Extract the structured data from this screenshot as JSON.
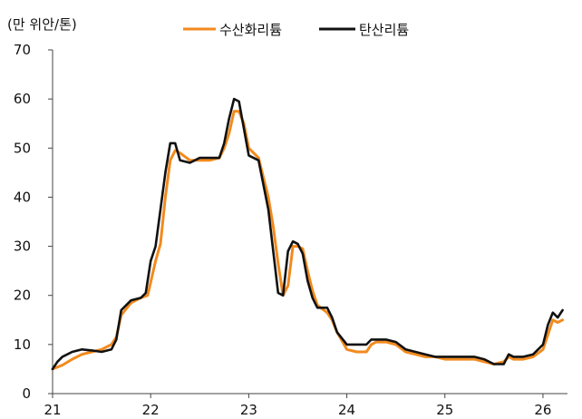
{
  "chart_data": {
    "type": "line",
    "unit_label": "(만 위안/톤)",
    "title": "",
    "xlabel": "",
    "ylabel": "",
    "xlim": [
      21,
      26.25
    ],
    "ylim": [
      0,
      70
    ],
    "y_ticks": [
      0,
      10,
      20,
      30,
      40,
      50,
      60,
      70
    ],
    "x_ticks": [
      21,
      22,
      23,
      24,
      25,
      26
    ],
    "x_tick_labels": [
      "21",
      "22",
      "23",
      "24",
      "25",
      "26"
    ],
    "legend_position": "top",
    "grid": false,
    "series": [
      {
        "name": "수산화리튬",
        "color": "#F28A1E",
        "points": [
          [
            21.0,
            5.0
          ],
          [
            21.1,
            5.8
          ],
          [
            21.2,
            7.0
          ],
          [
            21.3,
            8.0
          ],
          [
            21.4,
            8.5
          ],
          [
            21.5,
            9.0
          ],
          [
            21.6,
            10.0
          ],
          [
            21.65,
            11.5
          ],
          [
            21.7,
            16.0
          ],
          [
            21.8,
            18.5
          ],
          [
            21.9,
            19.5
          ],
          [
            21.97,
            20.0
          ],
          [
            22.05,
            27.0
          ],
          [
            22.1,
            30.5
          ],
          [
            22.15,
            40.0
          ],
          [
            22.2,
            47.5
          ],
          [
            22.25,
            49.5
          ],
          [
            22.3,
            49.0
          ],
          [
            22.4,
            47.5
          ],
          [
            22.5,
            47.5
          ],
          [
            22.6,
            47.5
          ],
          [
            22.7,
            48.0
          ],
          [
            22.75,
            50.0
          ],
          [
            22.8,
            53.0
          ],
          [
            22.85,
            57.5
          ],
          [
            22.9,
            57.5
          ],
          [
            22.95,
            55.0
          ],
          [
            23.0,
            50.0
          ],
          [
            23.05,
            49.0
          ],
          [
            23.1,
            48.0
          ],
          [
            23.2,
            40.0
          ],
          [
            23.25,
            34.0
          ],
          [
            23.3,
            26.5
          ],
          [
            23.35,
            20.0
          ],
          [
            23.4,
            22.0
          ],
          [
            23.45,
            30.0
          ],
          [
            23.5,
            30.0
          ],
          [
            23.55,
            29.5
          ],
          [
            23.6,
            25.0
          ],
          [
            23.65,
            21.0
          ],
          [
            23.7,
            18.0
          ],
          [
            23.8,
            16.5
          ],
          [
            23.85,
            15.0
          ],
          [
            23.9,
            12.5
          ],
          [
            24.0,
            9.0
          ],
          [
            24.1,
            8.5
          ],
          [
            24.2,
            8.5
          ],
          [
            24.25,
            10.0
          ],
          [
            24.3,
            10.5
          ],
          [
            24.4,
            10.5
          ],
          [
            24.5,
            10.0
          ],
          [
            24.6,
            8.5
          ],
          [
            24.7,
            8.0
          ],
          [
            24.8,
            7.5
          ],
          [
            24.9,
            7.5
          ],
          [
            25.0,
            7.0
          ],
          [
            25.1,
            7.0
          ],
          [
            25.2,
            7.0
          ],
          [
            25.3,
            7.0
          ],
          [
            25.4,
            6.5
          ],
          [
            25.5,
            6.0
          ],
          [
            25.6,
            6.5
          ],
          [
            25.65,
            7.5
          ],
          [
            25.7,
            7.0
          ],
          [
            25.8,
            7.0
          ],
          [
            25.9,
            7.5
          ],
          [
            26.0,
            9.0
          ],
          [
            26.05,
            12.0
          ],
          [
            26.1,
            15.0
          ],
          [
            26.15,
            14.5
          ],
          [
            26.2,
            15.0
          ]
        ]
      },
      {
        "name": "탄산리튬",
        "color": "#111111",
        "points": [
          [
            21.0,
            5.0
          ],
          [
            21.05,
            6.5
          ],
          [
            21.1,
            7.5
          ],
          [
            21.2,
            8.5
          ],
          [
            21.3,
            9.0
          ],
          [
            21.4,
            8.8
          ],
          [
            21.5,
            8.5
          ],
          [
            21.6,
            9.0
          ],
          [
            21.65,
            11.0
          ],
          [
            21.7,
            17.0
          ],
          [
            21.8,
            19.0
          ],
          [
            21.9,
            19.5
          ],
          [
            21.95,
            20.5
          ],
          [
            22.0,
            27.0
          ],
          [
            22.05,
            30.0
          ],
          [
            22.1,
            37.5
          ],
          [
            22.15,
            45.0
          ],
          [
            22.2,
            51.0
          ],
          [
            22.25,
            51.0
          ],
          [
            22.3,
            47.5
          ],
          [
            22.4,
            47.0
          ],
          [
            22.5,
            48.0
          ],
          [
            22.6,
            48.0
          ],
          [
            22.7,
            48.0
          ],
          [
            22.75,
            51.0
          ],
          [
            22.8,
            56.0
          ],
          [
            22.85,
            60.0
          ],
          [
            22.9,
            59.5
          ],
          [
            22.95,
            54.0
          ],
          [
            23.0,
            48.5
          ],
          [
            23.1,
            47.5
          ],
          [
            23.2,
            37.5
          ],
          [
            23.25,
            29.0
          ],
          [
            23.3,
            20.5
          ],
          [
            23.35,
            20.0
          ],
          [
            23.4,
            29.0
          ],
          [
            23.45,
            31.0
          ],
          [
            23.5,
            30.5
          ],
          [
            23.55,
            28.5
          ],
          [
            23.6,
            23.0
          ],
          [
            23.65,
            19.5
          ],
          [
            23.7,
            17.5
          ],
          [
            23.8,
            17.5
          ],
          [
            23.85,
            15.5
          ],
          [
            23.9,
            12.5
          ],
          [
            24.0,
            10.0
          ],
          [
            24.1,
            10.0
          ],
          [
            24.2,
            10.0
          ],
          [
            24.25,
            11.0
          ],
          [
            24.3,
            11.0
          ],
          [
            24.4,
            11.0
          ],
          [
            24.5,
            10.5
          ],
          [
            24.6,
            9.0
          ],
          [
            24.7,
            8.5
          ],
          [
            24.8,
            8.0
          ],
          [
            24.9,
            7.5
          ],
          [
            25.0,
            7.5
          ],
          [
            25.1,
            7.5
          ],
          [
            25.2,
            7.5
          ],
          [
            25.3,
            7.5
          ],
          [
            25.4,
            7.0
          ],
          [
            25.5,
            6.0
          ],
          [
            25.6,
            6.0
          ],
          [
            25.65,
            8.0
          ],
          [
            25.7,
            7.5
          ],
          [
            25.8,
            7.5
          ],
          [
            25.9,
            8.0
          ],
          [
            26.0,
            10.0
          ],
          [
            26.05,
            14.0
          ],
          [
            26.1,
            16.5
          ],
          [
            26.15,
            15.5
          ],
          [
            26.2,
            17.0
          ]
        ]
      }
    ]
  }
}
